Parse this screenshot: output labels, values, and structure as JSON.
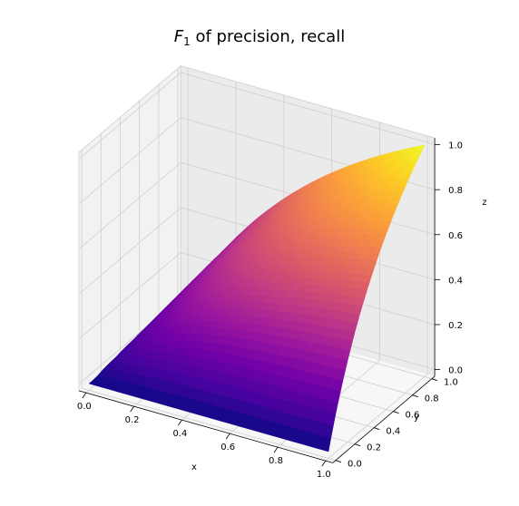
{
  "chart_data": {
    "type": "surface",
    "title_main": "F",
    "title_sub": "1",
    "title_rest": " of precision, recall",
    "function": "z = 2*x*y/(x+y)",
    "xlabel": "x",
    "ylabel": "y",
    "zlabel": "z",
    "xlim": [
      0,
      1
    ],
    "ylim": [
      0,
      1
    ],
    "zlim": [
      0,
      1
    ],
    "x_ticks": [
      "0.0",
      "0.2",
      "0.4",
      "0.6",
      "0.8",
      "1.0"
    ],
    "y_ticks": [
      "0.0",
      "0.2",
      "0.4",
      "0.6",
      "0.8",
      "1.0"
    ],
    "z_ticks": [
      "0.0",
      "0.2",
      "0.4",
      "0.6",
      "0.8",
      "1.0"
    ],
    "grid": true,
    "colormap": "plasma",
    "colormap_stops": [
      "#0d0887",
      "#46039f",
      "#7201a8",
      "#9c179e",
      "#bd3786",
      "#d8576b",
      "#ed7953",
      "#fb9f3a",
      "#fdca26",
      "#f0f921"
    ]
  }
}
